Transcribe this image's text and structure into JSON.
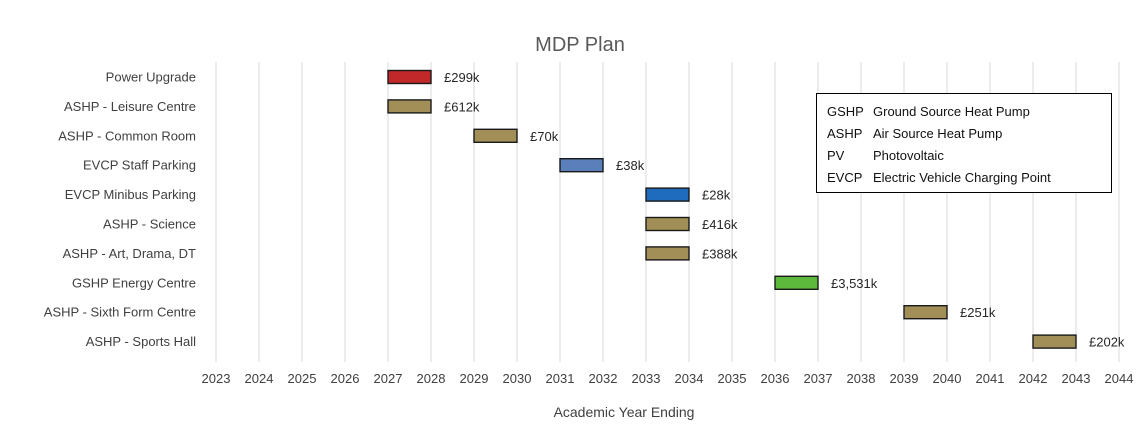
{
  "chart_data": {
    "type": "bar",
    "subtype": "gantt",
    "title": "MDP Plan",
    "xlabel": "Academic Year Ending",
    "ylabel": "",
    "xlim": [
      2023,
      2044
    ],
    "x_ticks": [
      "2023",
      "2024",
      "2025",
      "2026",
      "2027",
      "2028",
      "2029",
      "2030",
      "2031",
      "2032",
      "2033",
      "2034",
      "2035",
      "2036",
      "2037",
      "2038",
      "2039",
      "2040",
      "2041",
      "2042",
      "2043",
      "2044"
    ],
    "grid": "vertical",
    "legend_position": "top-right",
    "series": [
      {
        "label": "Power Upgrade",
        "start": 2027,
        "end": 2028,
        "cost": "£299k",
        "color": "#c0282a"
      },
      {
        "label": "ASHP -  Leisure Centre",
        "start": 2027,
        "end": 2028,
        "cost": "£612k",
        "color": "#a28f58"
      },
      {
        "label": "ASHP - Common Room",
        "start": 2029,
        "end": 2030,
        "cost": "£70k",
        "color": "#a28f58"
      },
      {
        "label": "EVCP Staff Parking",
        "start": 2031,
        "end": 2032,
        "cost": "£38k",
        "color": "#5b7fba"
      },
      {
        "label": "EVCP Minibus Parking",
        "start": 2033,
        "end": 2034,
        "cost": "£28k",
        "color": "#1f6bbd"
      },
      {
        "label": "ASHP  - Science",
        "start": 2033,
        "end": 2034,
        "cost": "£416k",
        "color": "#a28f58"
      },
      {
        "label": "ASHP - Art, Drama, DT",
        "start": 2033,
        "end": 2034,
        "cost": "£388k",
        "color": "#a28f58"
      },
      {
        "label": "GSHP Energy Centre",
        "start": 2036,
        "end": 2037,
        "cost": "£3,531k",
        "color": "#5cb93b"
      },
      {
        "label": "ASHP  - Sixth Form Centre",
        "start": 2039,
        "end": 2040,
        "cost": "£251k",
        "color": "#a28f58"
      },
      {
        "label": "ASHP  - Sports Hall",
        "start": 2042,
        "end": 2043,
        "cost": "£202k",
        "color": "#a28f58"
      }
    ]
  },
  "legend": {
    "items": [
      {
        "abbr": "GSHP",
        "text": "Ground Source Heat Pump"
      },
      {
        "abbr": "ASHP",
        "text": "Air Source Heat Pump"
      },
      {
        "abbr": "PV",
        "text": "Photovoltaic"
      },
      {
        "abbr": "EVCP",
        "text": "Electric Vehicle Charging Point"
      }
    ]
  }
}
